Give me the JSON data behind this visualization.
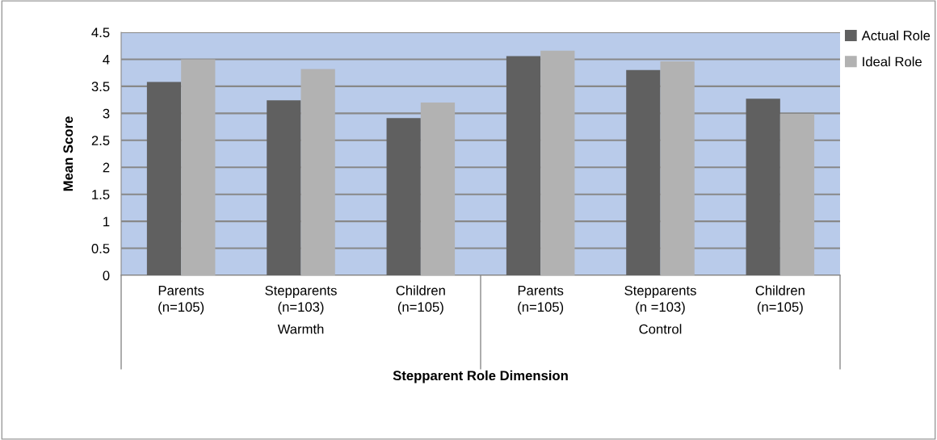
{
  "chart_data": {
    "type": "bar",
    "categories": [
      "Parents\n(n=105)",
      "Stepparents\n(n=103)",
      "Children\n(n=105)",
      "Parents\n(n=105)",
      "Stepparents\n(n =103)",
      "Children\n(n=105)"
    ],
    "series": [
      {
        "name": "Actual Role",
        "color": "#606060",
        "values": [
          3.58,
          3.24,
          2.91,
          4.06,
          3.8,
          3.27
        ]
      },
      {
        "name": "Ideal Role",
        "color": "#b2b2b2",
        "values": [
          4.0,
          3.82,
          3.2,
          4.16,
          3.96,
          2.99
        ]
      }
    ],
    "xlabel": "Stepparent Role Dimension",
    "ylabel": "Mean Score",
    "annotations": [
      "Warmth",
      "Control"
    ],
    "ylim": [
      0,
      4.5
    ],
    "yticks": [
      0,
      0.5,
      1,
      1.5,
      2,
      2.5,
      3,
      3.5,
      4,
      4.5
    ],
    "grid": "y",
    "legend": "top right"
  }
}
